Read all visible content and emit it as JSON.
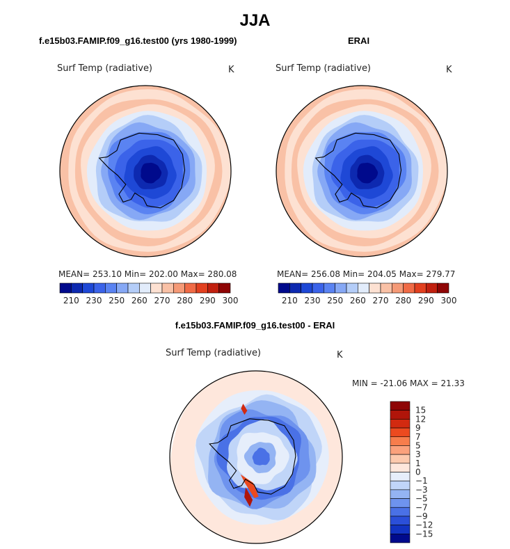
{
  "page": {
    "title": "JJA"
  },
  "panels": {
    "left": {
      "case_title": "f.e15b03.FAMIP.f09_g16.test00 (yrs 1980-1999)",
      "variable": "Surf Temp (radiative)",
      "units": "K",
      "stats": "MEAN= 253.10  Min= 202.00  Max= 280.08"
    },
    "right": {
      "case_title": "ERAI",
      "variable": "Surf Temp (radiative)",
      "units": "K",
      "stats": "MEAN= 256.08  Min= 204.05  Max= 279.77"
    },
    "diff": {
      "case_title": "f.e15b03.FAMIP.f09_g16.test00 - ERAI",
      "variable": "Surf Temp (radiative)",
      "units": "K",
      "stats": "MIN = -21.06 MAX =  21.33"
    }
  },
  "chart_data": [
    {
      "type": "heatmap",
      "panel": "left",
      "projection": "south-polar-stereographic",
      "variable": "Surf Temp (radiative)",
      "units": "K",
      "mean": 253.1,
      "min": 202.0,
      "max": 280.08,
      "colorbar": {
        "orientation": "horizontal",
        "tick_labels": [
          "210",
          "230",
          "250",
          "260",
          "270",
          "280",
          "290",
          "300"
        ],
        "colors": [
          "#000a8c",
          "#0d29b0",
          "#1e48d6",
          "#3b63e9",
          "#5a83f2",
          "#86a8f5",
          "#b4cdf8",
          "#e2ecfb",
          "#fde1d2",
          "#f9c1a6",
          "#f59a77",
          "#f06b46",
          "#e2401f",
          "#c1200f",
          "#8e0505"
        ]
      }
    },
    {
      "type": "heatmap",
      "panel": "right",
      "projection": "south-polar-stereographic",
      "variable": "Surf Temp (radiative)",
      "units": "K",
      "mean": 256.08,
      "min": 204.05,
      "max": 279.77,
      "colorbar": {
        "orientation": "horizontal",
        "tick_labels": [
          "210",
          "230",
          "250",
          "260",
          "270",
          "280",
          "290",
          "300"
        ],
        "colors": [
          "#000a8c",
          "#0d29b0",
          "#1e48d6",
          "#3b63e9",
          "#5a83f2",
          "#86a8f5",
          "#b4cdf8",
          "#e2ecfb",
          "#fde1d2",
          "#f9c1a6",
          "#f59a77",
          "#f06b46",
          "#e2401f",
          "#c1200f",
          "#8e0505"
        ]
      }
    },
    {
      "type": "heatmap",
      "panel": "diff",
      "projection": "south-polar-stereographic",
      "variable": "Surf Temp (radiative)",
      "units": "K",
      "min": -21.06,
      "max": 21.33,
      "colorbar": {
        "orientation": "vertical",
        "tick_labels": [
          "15",
          "12",
          "9",
          "7",
          "5",
          "3",
          "1",
          "0",
          "−1",
          "−3",
          "−5",
          "−7",
          "−9",
          "−12",
          "−15"
        ],
        "colors": [
          "#8e0505",
          "#b0150a",
          "#d22a10",
          "#ec4a1f",
          "#f77d4c",
          "#fba17c",
          "#fdc9ad",
          "#fee7dc",
          "#e6eefb",
          "#c0d5f8",
          "#94b4f3",
          "#6e93ee",
          "#4a71e6",
          "#2b4fd9",
          "#1233c2",
          "#000a8c"
        ]
      }
    }
  ]
}
